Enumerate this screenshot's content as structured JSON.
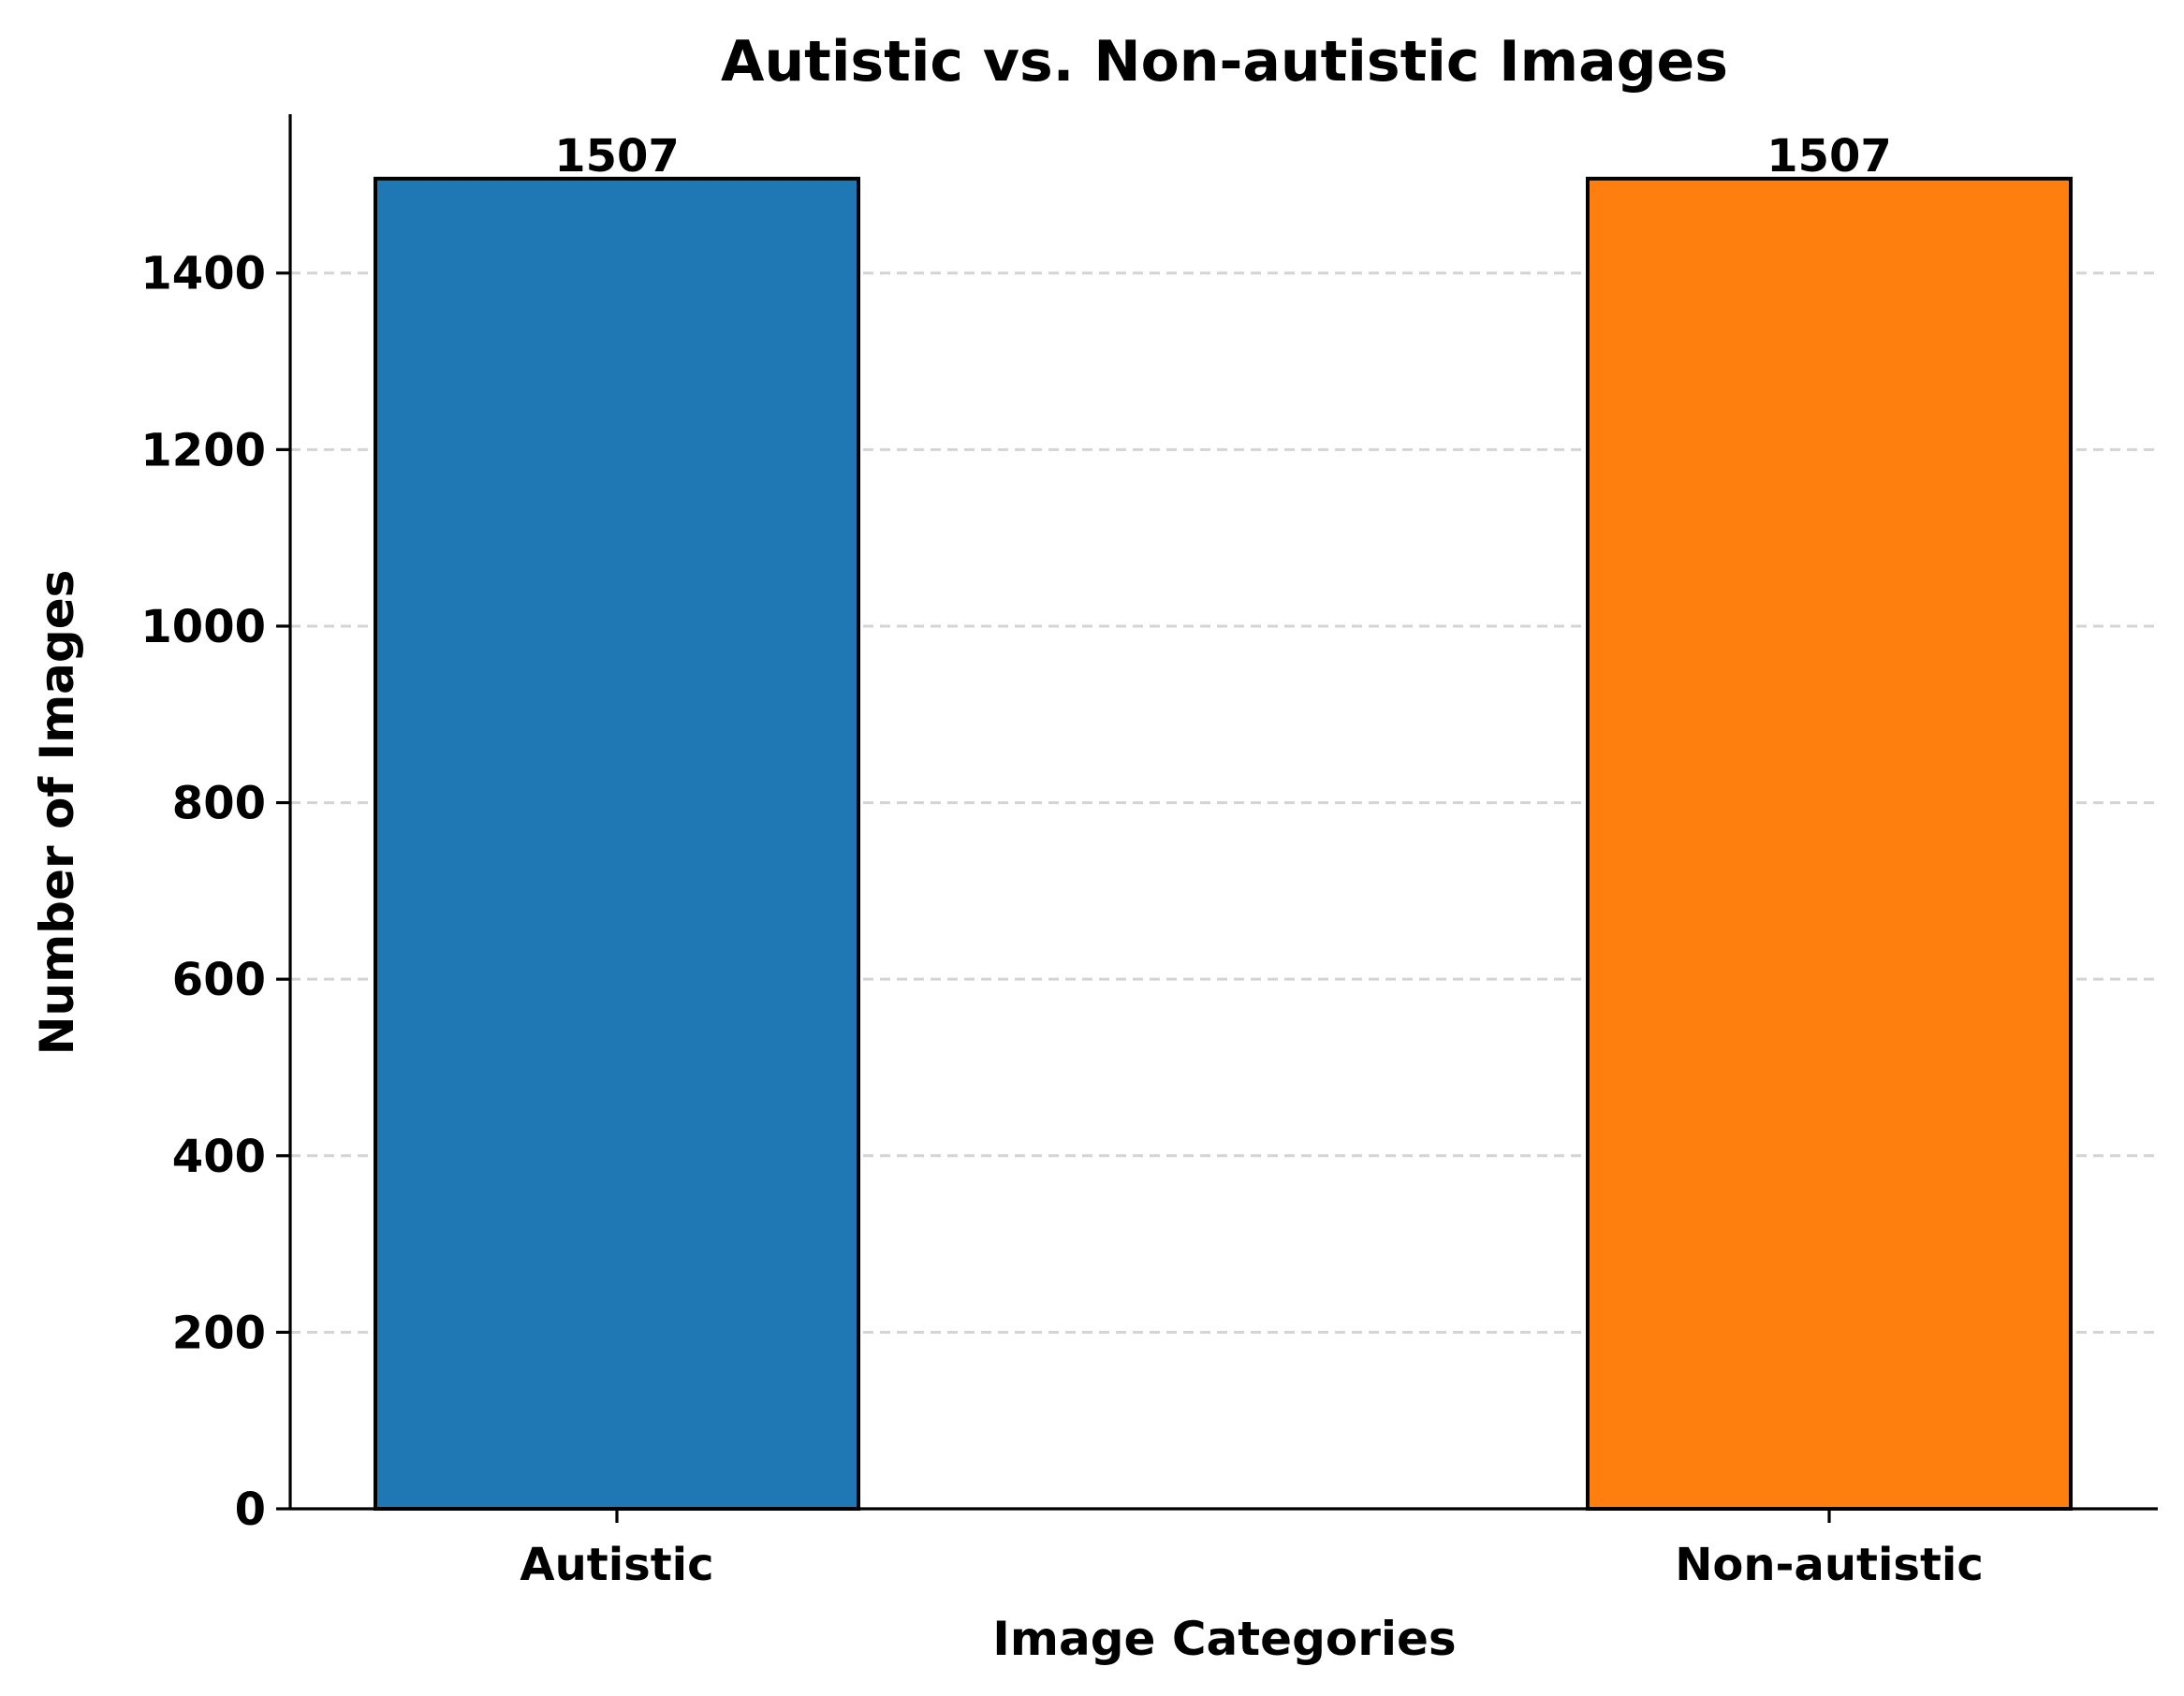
{
  "chart_data": {
    "type": "bar",
    "title": "Autistic vs. Non-autistic Images",
    "xlabel": "Image Categories",
    "ylabel": "Number of Images",
    "categories": [
      "Autistic",
      "Non-autistic"
    ],
    "values": [
      1507,
      1507
    ],
    "value_labels": [
      "1507",
      "1507"
    ],
    "colors": [
      "#1f77b4",
      "#ff7f0e"
    ],
    "ylim": [
      0,
      1580
    ],
    "yticks": [
      0,
      200,
      400,
      600,
      800,
      1000,
      1200,
      1400
    ],
    "grid": "horizontal dashed",
    "legend": "none"
  }
}
